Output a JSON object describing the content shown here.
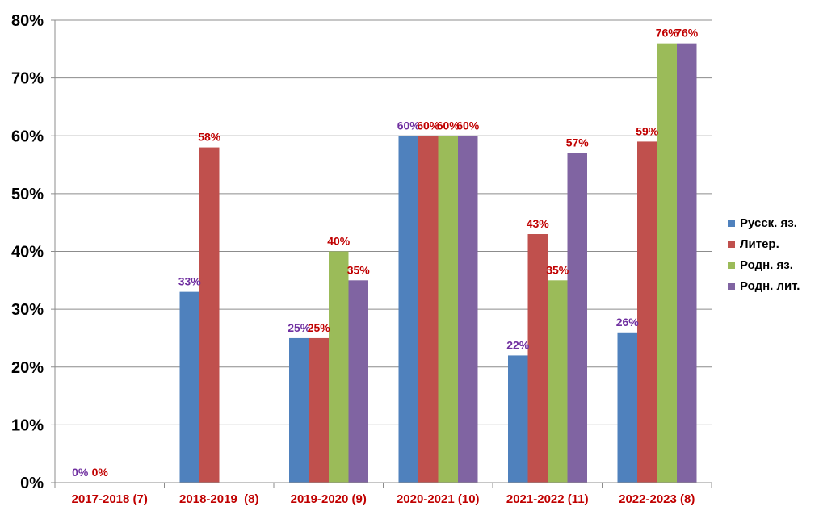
{
  "chart_data": {
    "type": "bar",
    "categories": [
      "2017-2018 (7)",
      "2018-2019  (8)",
      "2019-2020 (9)",
      "2020-2021 (10)",
      "2021-2022 (11)",
      "2022-2023 (8)"
    ],
    "ylim": [
      0,
      80
    ],
    "yticks": [
      "0%",
      "10%",
      "20%",
      "30%",
      "40%",
      "50%",
      "60%",
      "70%",
      "80%"
    ],
    "grid": true,
    "legend_position": "right",
    "series": [
      {
        "name": "Русск. яз.",
        "color": "#4f81bd",
        "label_color": "#7030a0",
        "values": [
          0,
          33,
          25,
          60,
          22,
          26
        ],
        "labels": [
          "0%",
          "33%",
          "25%",
          "60%",
          "22%",
          "26%"
        ]
      },
      {
        "name": "Литер.",
        "color": "#c0504d",
        "label_color": "#c00000",
        "values": [
          0,
          58,
          25,
          60,
          43,
          59
        ],
        "labels": [
          "0%",
          "58%",
          "25%",
          "60%",
          "43%",
          "59%"
        ]
      },
      {
        "name": "Родн. яз.",
        "color": "#9bbb59",
        "label_color": "#c00000",
        "values": [
          null,
          null,
          40,
          60,
          35,
          76
        ],
        "labels": [
          null,
          null,
          "40%",
          "60%",
          "35%",
          "76%"
        ]
      },
      {
        "name": "Родн. лит.",
        "color": "#8064a2",
        "label_color": "#c00000",
        "values": [
          null,
          null,
          35,
          60,
          57,
          76
        ],
        "labels": [
          null,
          null,
          "35%",
          "60%",
          "57%",
          "76%"
        ]
      }
    ]
  }
}
